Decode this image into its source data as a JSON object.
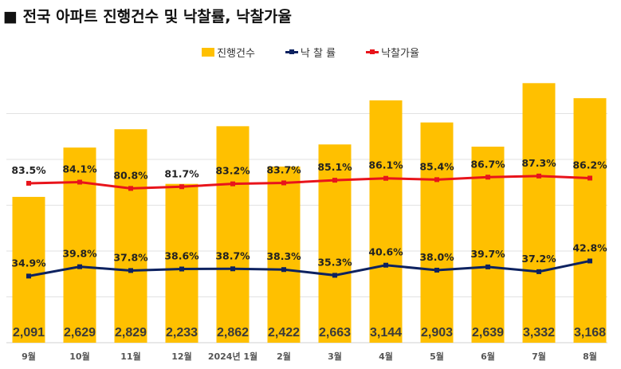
{
  "title": "■ 전국 아파트 진행건수 및 낙찰률, 낙찰가율",
  "chart_data": {
    "type": "bar",
    "categories": [
      "9월",
      "10월",
      "11월",
      "12월",
      "2024년 1월",
      "2월",
      "3월",
      "4월",
      "5월",
      "6월",
      "7월",
      "8월"
    ],
    "series": [
      {
        "name": "진행건수",
        "type": "bar",
        "axis": "primary",
        "color": "#FFC000",
        "values": [
          2091,
          2629,
          2829,
          2233,
          2862,
          2422,
          2663,
          3144,
          2903,
          2639,
          3332,
          3168
        ],
        "labels": [
          "2,091",
          "2,629",
          "2,829",
          "2,233",
          "2,862",
          "2,422",
          "2,663",
          "3,144",
          "2,903",
          "2,639",
          "3,332",
          "3,168"
        ]
      },
      {
        "name": "낙 찰 률",
        "type": "line",
        "axis": "secondary",
        "color": "#0D2260",
        "values": [
          34.9,
          39.8,
          37.8,
          38.6,
          38.7,
          38.3,
          35.3,
          40.6,
          38.0,
          39.7,
          37.2,
          42.8
        ]
      },
      {
        "name": "낙찰가율",
        "type": "line",
        "axis": "secondary",
        "color": "#E8141B",
        "values": [
          83.5,
          84.1,
          80.8,
          81.7,
          83.2,
          83.7,
          85.1,
          86.1,
          85.4,
          86.7,
          87.3,
          86.2
        ]
      }
    ],
    "ylim": [
      500,
      3500
    ],
    "y2lim": [
      0,
      144
    ],
    "grid": true,
    "legend": "top"
  }
}
